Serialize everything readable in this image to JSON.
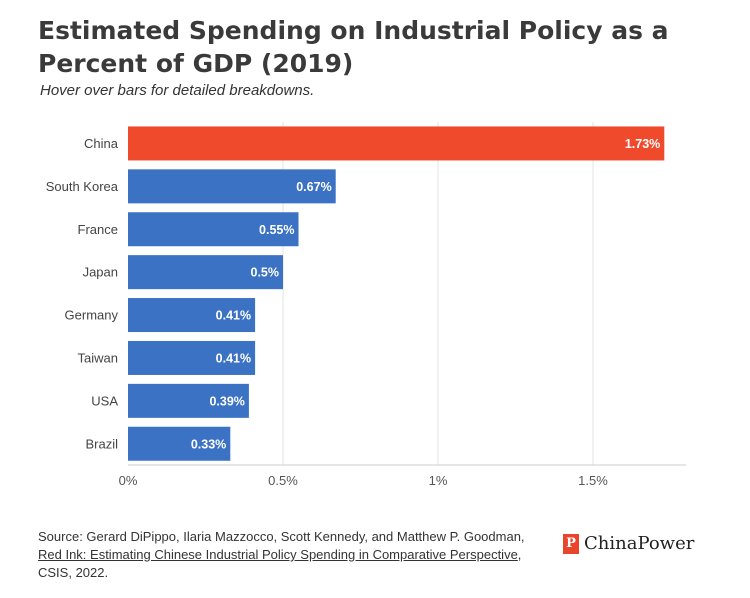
{
  "chart_data": {
    "type": "bar",
    "orientation": "horizontal",
    "title": "Estimated Spending on Industrial Policy as a Percent of GDP (2019)",
    "subtitle": "Hover over bars for detailed breakdowns.",
    "categories": [
      "China",
      "South Korea",
      "France",
      "Japan",
      "Germany",
      "Taiwan",
      "USA",
      "Brazil"
    ],
    "values": [
      1.73,
      0.67,
      0.55,
      0.5,
      0.41,
      0.41,
      0.39,
      0.33
    ],
    "data_labels": [
      "1.73%",
      "0.67%",
      "0.55%",
      "0.5%",
      "0.41%",
      "0.41%",
      "0.39%",
      "0.33%"
    ],
    "colors": [
      "#f04a2d",
      "#3b72c4",
      "#3b72c4",
      "#3b72c4",
      "#3b72c4",
      "#3b72c4",
      "#3b72c4",
      "#3b72c4"
    ],
    "xlim": [
      0,
      1.8
    ],
    "xticks": [
      0,
      0.5,
      1,
      1.5
    ],
    "xtick_labels": [
      "0%",
      "0.5%",
      "1%",
      "1.5%"
    ],
    "grid": true,
    "xlabel": "",
    "ylabel": ""
  },
  "footer": {
    "source_prefix": "Source: Gerard DiPippo, Ilaria Mazzocco, Scott Kennedy, and Matthew P. Goodman, ",
    "source_link": "Red Ink: Estimating Chinese Industrial Policy Spending in Comparative Perspective",
    "source_suffix": ", CSIS, 2022."
  },
  "logo": {
    "icon": "chinapower-logo-icon",
    "text": "ChinaPower",
    "color": "#e8452c"
  }
}
